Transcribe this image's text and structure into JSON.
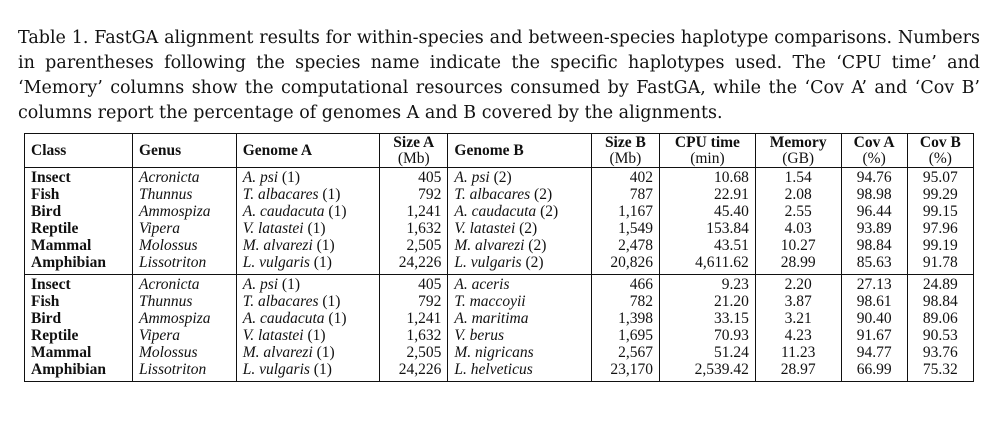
{
  "caption": "Table 1. FastGA alignment results for within-species and between-species haplotype comparisons. Numbers in parentheses following the species name indicate the specific haplotypes used. The ‘CPU time’ and ‘Memory’ columns show the computational resources consumed by FastGA, while the ‘Cov A’ and ‘Cov B’ columns report the percentage of genomes A and B covered by the alignments.",
  "headers": {
    "class": "Class",
    "genus": "Genus",
    "genome_a": "Genome A",
    "size_a": "Size A",
    "size_a_unit": "(Mb)",
    "genome_b": "Genome B",
    "size_b": "Size B",
    "size_b_unit": "(Mb)",
    "cpu": "CPU time",
    "cpu_unit": "(min)",
    "memory": "Memory",
    "memory_unit": "(GB)",
    "cov_a": "Cov A",
    "cov_a_unit": "(%)",
    "cov_b": "Cov B",
    "cov_b_unit": "(%)"
  },
  "within_species": [
    {
      "class": "Insect",
      "genus": "Acronicta",
      "genome_a_sp": "A. psi",
      "genome_a_hap": "(1)",
      "size_a": "405",
      "genome_b_sp": "A. psi",
      "genome_b_hap": "(2)",
      "size_b": "402",
      "cpu": "10.68",
      "memory": "1.54",
      "cov_a": "94.76",
      "cov_b": "95.07"
    },
    {
      "class": "Fish",
      "genus": "Thunnus",
      "genome_a_sp": "T. albacares",
      "genome_a_hap": "(1)",
      "size_a": "792",
      "genome_b_sp": "T. albacares",
      "genome_b_hap": "(2)",
      "size_b": "787",
      "cpu": "22.91",
      "memory": "2.08",
      "cov_a": "98.98",
      "cov_b": "99.29"
    },
    {
      "class": "Bird",
      "genus": "Ammospiza",
      "genome_a_sp": "A. caudacuta",
      "genome_a_hap": "(1)",
      "size_a": "1,241",
      "genome_b_sp": "A. caudacuta",
      "genome_b_hap": "(2)",
      "size_b": "1,167",
      "cpu": "45.40",
      "memory": "2.55",
      "cov_a": "96.44",
      "cov_b": "99.15"
    },
    {
      "class": "Reptile",
      "genus": "Vipera",
      "genome_a_sp": "V. latastei",
      "genome_a_hap": "(1)",
      "size_a": "1,632",
      "genome_b_sp": "V. latastei",
      "genome_b_hap": "(2)",
      "size_b": "1,549",
      "cpu": "153.84",
      "memory": "4.03",
      "cov_a": "93.89",
      "cov_b": "97.96"
    },
    {
      "class": "Mammal",
      "genus": "Molossus",
      "genome_a_sp": "M. alvarezi",
      "genome_a_hap": "(1)",
      "size_a": "2,505",
      "genome_b_sp": "M. alvarezi",
      "genome_b_hap": "(2)",
      "size_b": "2,478",
      "cpu": "43.51",
      "memory": "10.27",
      "cov_a": "98.84",
      "cov_b": "99.19"
    },
    {
      "class": "Amphibian",
      "genus": "Lissotriton",
      "genome_a_sp": "L. vulgaris",
      "genome_a_hap": "(1)",
      "size_a": "24,226",
      "genome_b_sp": "L. vulgaris",
      "genome_b_hap": "(2)",
      "size_b": "20,826",
      "cpu": "4,611.62",
      "memory": "28.99",
      "cov_a": "85.63",
      "cov_b": "91.78"
    }
  ],
  "between_species": [
    {
      "class": "Insect",
      "genus": "Acronicta",
      "genome_a_sp": "A. psi",
      "genome_a_hap": "(1)",
      "size_a": "405",
      "genome_b_sp": "A. aceris",
      "genome_b_hap": "",
      "size_b": "466",
      "cpu": "9.23",
      "memory": "2.20",
      "cov_a": "27.13",
      "cov_b": "24.89"
    },
    {
      "class": "Fish",
      "genus": "Thunnus",
      "genome_a_sp": "T. albacares",
      "genome_a_hap": "(1)",
      "size_a": "792",
      "genome_b_sp": "T. maccoyii",
      "genome_b_hap": "",
      "size_b": "782",
      "cpu": "21.20",
      "memory": "3.87",
      "cov_a": "98.61",
      "cov_b": "98.84"
    },
    {
      "class": "Bird",
      "genus": "Ammospiza",
      "genome_a_sp": "A. caudacuta",
      "genome_a_hap": "(1)",
      "size_a": "1,241",
      "genome_b_sp": "A. maritima",
      "genome_b_hap": "",
      "size_b": "1,398",
      "cpu": "33.15",
      "memory": "3.21",
      "cov_a": "90.40",
      "cov_b": "89.06"
    },
    {
      "class": "Reptile",
      "genus": "Vipera",
      "genome_a_sp": "V. latastei",
      "genome_a_hap": "(1)",
      "size_a": "1,632",
      "genome_b_sp": "V. berus",
      "genome_b_hap": "",
      "size_b": "1,695",
      "cpu": "70.93",
      "memory": "4.23",
      "cov_a": "91.67",
      "cov_b": "90.53"
    },
    {
      "class": "Mammal",
      "genus": "Molossus",
      "genome_a_sp": "M. alvarezi",
      "genome_a_hap": "(1)",
      "size_a": "2,505",
      "genome_b_sp": "M. nigricans",
      "genome_b_hap": "",
      "size_b": "2,567",
      "cpu": "51.24",
      "memory": "11.23",
      "cov_a": "94.77",
      "cov_b": "93.76"
    },
    {
      "class": "Amphibian",
      "genus": "Lissotriton",
      "genome_a_sp": "L. vulgaris",
      "genome_a_hap": "(1)",
      "size_a": "24,226",
      "genome_b_sp": "L. helveticus",
      "genome_b_hap": "",
      "size_b": "23,170",
      "cpu": "2,539.42",
      "memory": "28.97",
      "cov_a": "66.99",
      "cov_b": "75.32"
    }
  ]
}
